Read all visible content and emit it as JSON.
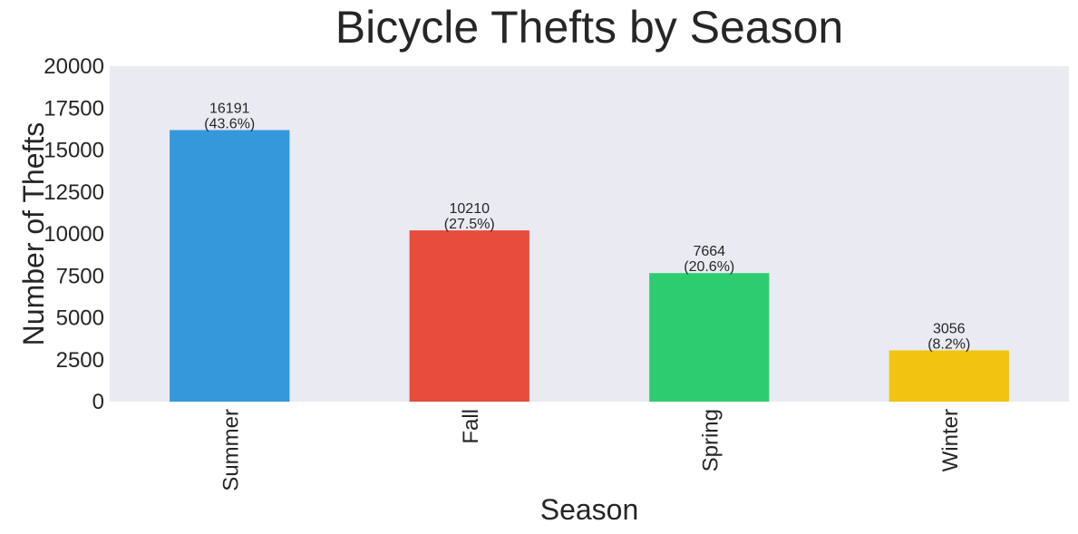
{
  "chart_data": {
    "type": "bar",
    "title": "Bicycle Thefts by Season",
    "xlabel": "Season",
    "ylabel": "Number of Thefts",
    "categories": [
      "Summer",
      "Fall",
      "Spring",
      "Winter"
    ],
    "values": [
      16191,
      10210,
      7664,
      3056
    ],
    "value_labels": [
      "16191",
      "10210",
      "7664",
      "3056"
    ],
    "percent_labels": [
      "(43.6%)",
      "(27.5%)",
      "(20.6%)",
      "(8.2%)"
    ],
    "colors": [
      "#3498db",
      "#e74c3c",
      "#2ecc71",
      "#f1c40f"
    ],
    "ylim": [
      0,
      20000
    ],
    "yticks": [
      0,
      2500,
      5000,
      7500,
      10000,
      12500,
      15000,
      17500,
      20000
    ],
    "ytick_labels": [
      "0",
      "2500",
      "5000",
      "7500",
      "10000",
      "12500",
      "15000",
      "17500",
      "20000"
    ],
    "grid": false,
    "legend": "none",
    "plot_background": "#eaeaf2"
  }
}
